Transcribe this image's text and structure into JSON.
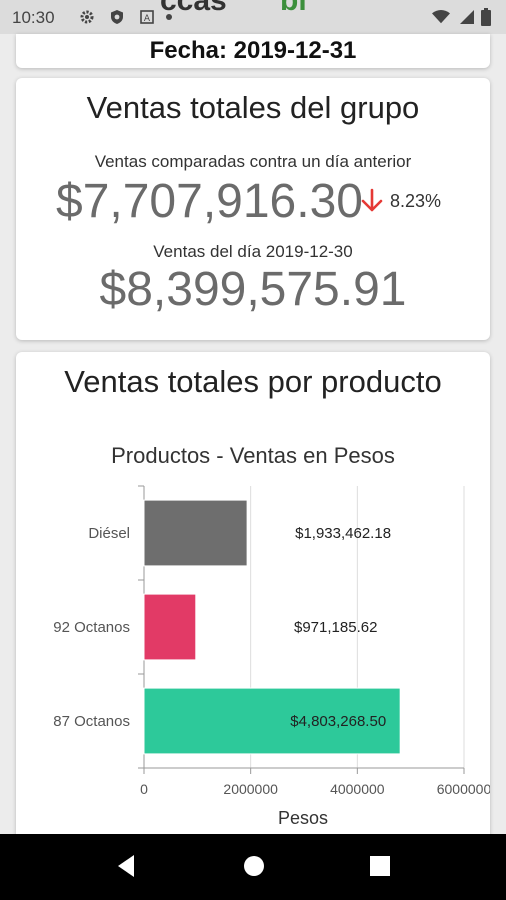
{
  "status_bar": {
    "time": "10:30",
    "icons": [
      "gear-icon",
      "shield-icon",
      "app-icon",
      "notification-icon",
      "wifi-icon",
      "signal-icon",
      "battery-icon"
    ]
  },
  "header": {
    "fecha": "Fecha: 2019-12-31"
  },
  "group_sales": {
    "title": "Ventas totales del grupo",
    "compare_label": "Ventas comparadas contra un día anterior",
    "current_amount": "$7,707,916.30",
    "change_pct": "8.23%",
    "change_direction": "down",
    "change_color": "#e53935",
    "previous_label": "Ventas del día 2019-12-30",
    "previous_amount": "$8,399,575.91"
  },
  "product_sales": {
    "title": "Ventas totales por producto"
  },
  "chart_data": {
    "type": "bar",
    "orientation": "horizontal",
    "title": "Productos - Ventas en Pesos",
    "xlabel": "Pesos",
    "ylabel": "",
    "categories": [
      "Diésel",
      "92 Octanos",
      "87 Octanos"
    ],
    "values": [
      1933462.18,
      971185.62,
      4803268.5
    ],
    "value_labels": [
      "$1,933,462.18",
      "$971,185.62",
      "$4,803,268.50"
    ],
    "colors": [
      "#6e6e6e",
      "#e23a66",
      "#2dc99a"
    ],
    "xlim": [
      0,
      6000000
    ],
    "x_ticks": [
      0,
      2000000,
      4000000,
      6000000
    ],
    "x_tick_labels": [
      "0",
      "2000000",
      "4000000",
      "6000000"
    ],
    "grid": true,
    "legend": "none"
  },
  "nav_bar": {
    "buttons": [
      "back-icon",
      "home-icon",
      "recents-icon"
    ]
  }
}
